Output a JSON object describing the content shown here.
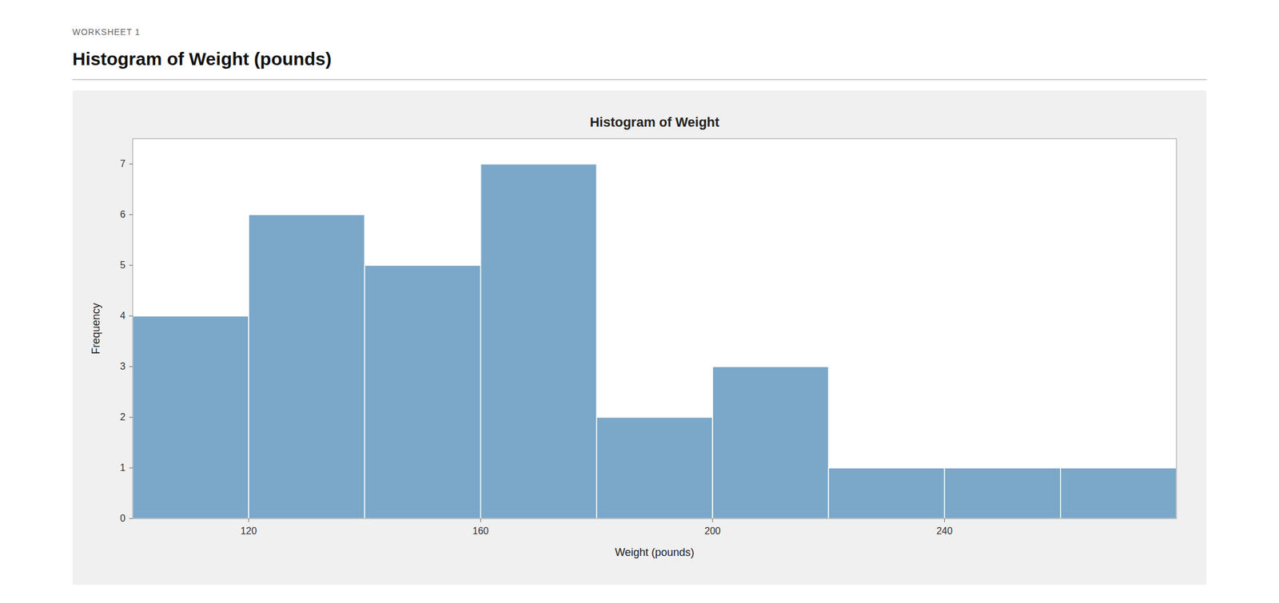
{
  "chart_data": {
    "type": "histogram",
    "title": "Histogram of Weight",
    "subtitle": "Histogram of Weight (pounds)",
    "annotations": [
      "WORKSHEET 1"
    ],
    "x_label": "Weight (pounds)",
    "y_label": "Frequency",
    "bins": [
      100,
      120,
      140,
      160,
      180,
      200,
      220,
      240,
      260,
      280
    ],
    "values": [
      4,
      6,
      5,
      7,
      2,
      3,
      1,
      1,
      1
    ],
    "color": "#7BA7C9",
    "xlim": [
      100,
      280
    ],
    "xticks": [
      120,
      160,
      200,
      240
    ],
    "ylim": [
      0,
      7.5
    ],
    "yticks": [
      0,
      1,
      2,
      3,
      4,
      5,
      6,
      7
    ],
    "grid": false
  }
}
